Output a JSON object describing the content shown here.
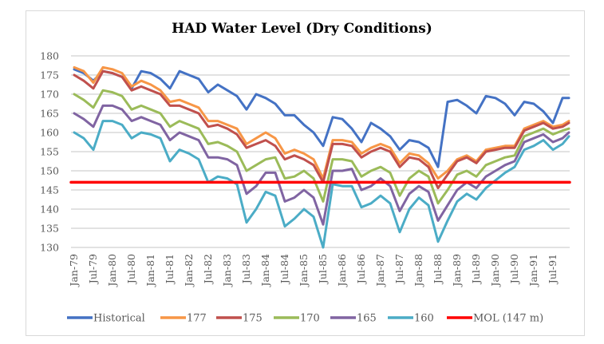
{
  "chart_data": {
    "type": "line",
    "title": "HAD Water Level (Dry Conditions)",
    "xlabel": "",
    "ylabel": "",
    "ylim": [
      130,
      180
    ],
    "yticks": [
      130,
      135,
      140,
      145,
      150,
      155,
      160,
      165,
      170,
      175,
      180
    ],
    "grid": true,
    "legend_position": "bottom",
    "x_tick_labels": [
      "Jan-79",
      "Jul-79",
      "Jan-80",
      "Jul-80",
      "Jan-81",
      "Jul-81",
      "Jan-82",
      "Jul-82",
      "Jan-83",
      "Jul-83",
      "Jan-84",
      "Jul-84",
      "Jan-85",
      "Jul-85",
      "Jan-86",
      "Jul-86",
      "Jan-87",
      "Jul-87",
      "Jan-88",
      "Jul-88",
      "Jan-89",
      "Jul-89",
      "Jan-90",
      "Jul-90",
      "Jan-91",
      "Jul-91"
    ],
    "x": [
      "Jan-79",
      "Apr-79",
      "Jul-79",
      "Oct-79",
      "Jan-80",
      "Apr-80",
      "Jul-80",
      "Oct-80",
      "Jan-81",
      "Apr-81",
      "Jul-81",
      "Oct-81",
      "Jan-82",
      "Apr-82",
      "Jul-82",
      "Oct-82",
      "Jan-83",
      "Apr-83",
      "Jul-83",
      "Oct-83",
      "Jan-84",
      "Apr-84",
      "Jul-84",
      "Oct-84",
      "Jan-85",
      "Apr-85",
      "Jul-85",
      "Oct-85",
      "Jan-86",
      "Apr-86",
      "Jul-86",
      "Oct-86",
      "Jan-87",
      "Apr-87",
      "Jul-87",
      "Oct-87",
      "Jan-88",
      "Apr-88",
      "Jul-88",
      "Oct-88",
      "Jan-89",
      "Apr-89",
      "Jul-89",
      "Oct-89",
      "Jan-90",
      "Apr-90",
      "Jul-90",
      "Oct-90",
      "Jan-91",
      "Apr-91",
      "Jul-91",
      "Oct-91",
      "Dec-91"
    ],
    "series": [
      {
        "name": "Historical",
        "color": "#4472c4",
        "values": [
          176.5,
          175.5,
          173.5,
          176,
          175.5,
          174.5,
          171.5,
          176,
          175.5,
          174,
          171.5,
          176,
          175,
          174,
          170.5,
          172.5,
          171,
          169.5,
          166,
          170,
          169,
          167.5,
          164.5,
          164.5,
          162,
          160,
          156.5,
          164,
          163.5,
          161,
          157.5,
          162.5,
          161,
          159,
          155.5,
          158,
          157.5,
          156,
          151,
          168,
          168.5,
          167,
          165,
          169.5,
          169,
          167.5,
          164.5,
          168,
          167.5,
          165.5,
          162.5,
          169,
          169
        ]
      },
      {
        "name": "177",
        "color": "#f79646",
        "values": [
          177,
          176,
          173,
          177,
          176.5,
          175.5,
          172,
          173.5,
          172.5,
          171,
          168,
          168.5,
          167.5,
          166.5,
          163,
          163,
          162,
          161,
          157,
          158.5,
          160,
          158.5,
          154.5,
          155.5,
          154.5,
          153,
          148,
          158,
          158,
          157.5,
          154.5,
          156,
          157,
          156,
          152,
          154.5,
          154,
          152,
          148,
          150,
          153,
          154,
          152.5,
          155.5,
          156,
          156.5,
          156.5,
          161,
          162,
          163,
          161.5,
          162,
          163
        ]
      },
      {
        "name": "175",
        "color": "#c0504d",
        "values": [
          175,
          173.5,
          171.5,
          176,
          175.5,
          174.5,
          171,
          172,
          171,
          170,
          167,
          167,
          166,
          165,
          161.5,
          162,
          161,
          159.5,
          156,
          157,
          158,
          156.5,
          153,
          154,
          153,
          151.5,
          147,
          157,
          157,
          156.5,
          153.5,
          155,
          156,
          155,
          151,
          153.5,
          153,
          151,
          145.5,
          149,
          152.5,
          153.5,
          152,
          155,
          155.5,
          156,
          156,
          160.5,
          161.5,
          162.5,
          161,
          161.5,
          162.5
        ]
      },
      {
        "name": "170",
        "color": "#9bbb59",
        "values": [
          170,
          168.5,
          166.5,
          171,
          170.5,
          169.5,
          166,
          167,
          166,
          165,
          161.5,
          163,
          162,
          161,
          157,
          157.5,
          156.5,
          155,
          150,
          151.5,
          153,
          153.5,
          148,
          148.5,
          150,
          148,
          142,
          153,
          153,
          152.5,
          148.5,
          150,
          151,
          149.5,
          143.5,
          148,
          150,
          148.5,
          141.5,
          145,
          149,
          150,
          148.5,
          151.5,
          152.5,
          153.5,
          154,
          159,
          160,
          161,
          159.5,
          160.5,
          161
        ]
      },
      {
        "name": "165",
        "color": "#8064a2",
        "values": [
          165,
          163.5,
          161.5,
          167,
          167,
          166,
          163,
          164,
          163,
          162,
          158,
          160,
          159,
          158,
          153.5,
          153.5,
          153,
          151.5,
          144,
          146,
          149.5,
          149.5,
          142,
          143,
          145,
          143,
          136,
          150,
          150,
          150.5,
          145,
          146,
          148,
          146,
          139.5,
          144,
          146,
          144.5,
          137,
          141,
          145,
          147,
          145.5,
          148.5,
          150,
          151.5,
          152.5,
          157.5,
          158.5,
          159.5,
          157.5,
          158.5,
          160
        ]
      },
      {
        "name": "160",
        "color": "#4bacc6",
        "values": [
          160,
          158.5,
          155.5,
          163,
          163,
          162,
          158.5,
          160,
          159.5,
          158.5,
          152.5,
          155.5,
          154.5,
          153,
          147,
          148.5,
          148,
          146.5,
          136.5,
          140,
          144.5,
          143.5,
          135.5,
          137.5,
          140,
          138,
          130,
          146.5,
          146,
          146,
          140.5,
          141.5,
          143.5,
          141.5,
          134,
          140,
          143,
          141,
          131.5,
          137,
          142,
          144,
          142.5,
          145.5,
          147.5,
          149.5,
          151,
          155.5,
          156.5,
          158,
          155.5,
          157,
          159
        ]
      },
      {
        "name": "MOL (147 m)",
        "color": "#ff0000",
        "values": [
          147,
          147,
          147,
          147,
          147,
          147,
          147,
          147,
          147,
          147,
          147,
          147,
          147,
          147,
          147,
          147,
          147,
          147,
          147,
          147,
          147,
          147,
          147,
          147,
          147,
          147,
          147,
          147,
          147,
          147,
          147,
          147,
          147,
          147,
          147,
          147,
          147,
          147,
          147,
          147,
          147,
          147,
          147,
          147,
          147,
          147,
          147,
          147,
          147,
          147,
          147,
          147,
          147
        ]
      }
    ]
  }
}
